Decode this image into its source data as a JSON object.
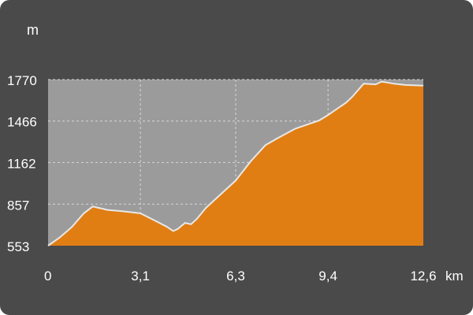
{
  "chart_data": {
    "type": "area",
    "xlabel": "km",
    "ylabel": "m",
    "x_ticks": [
      "0",
      "3,1",
      "6,3",
      "9,4",
      "12,6"
    ],
    "y_ticks": [
      "553",
      "857",
      "1162",
      "1466",
      "1770"
    ],
    "xlim": [
      0,
      12.6
    ],
    "ylim": [
      553,
      1770
    ],
    "grid": true,
    "colors": {
      "background": "#4a4a4a",
      "plot": "#9b9b9b",
      "fill": "#e07e14",
      "line": "#e8e8e8",
      "grid": "#d8d8d8"
    },
    "series": [
      {
        "x": [
          0,
          0.4,
          0.8,
          1.2,
          1.5,
          1.7,
          2.0,
          2.5,
          3.1,
          3.6,
          4.0,
          4.2,
          4.35,
          4.6,
          4.8,
          5.0,
          5.3,
          5.8,
          6.3,
          6.8,
          7.3,
          7.7,
          8.0,
          8.3,
          8.7,
          9.1,
          9.4,
          9.8,
          10.0,
          10.2,
          10.6,
          11.0,
          11.2,
          11.6,
          12.0,
          12.6
        ],
        "y": [
          553,
          615,
          690,
          790,
          840,
          830,
          815,
          805,
          790,
          735,
          690,
          660,
          675,
          720,
          710,
          750,
          830,
          930,
          1030,
          1170,
          1290,
          1340,
          1375,
          1410,
          1440,
          1470,
          1510,
          1570,
          1600,
          1640,
          1740,
          1735,
          1755,
          1740,
          1730,
          1725
        ]
      }
    ]
  }
}
